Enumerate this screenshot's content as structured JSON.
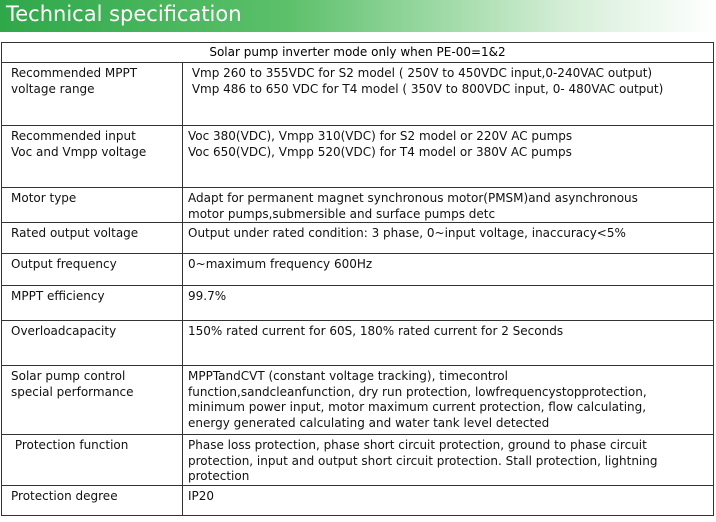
{
  "header": {
    "title": "Technical specification"
  },
  "table": {
    "title": "Solar pump inverter mode only when PE-00=1&2",
    "rows": [
      [
        [
          "Recommended MPPT",
          "voltage range"
        ],
        [
          " Vmp 260 to 355VDC for S2 model ( 250V to 450VDC input,0-240VAC output)",
          " Vmp 486 to 650 VDC for T4 model ( 350V to 800VDC input, 0- 480VAC output)"
        ]
      ],
      [
        [
          "Recommended input",
          "Voc and Vmpp voltage"
        ],
        [
          "Voc 380(VDC), Vmpp 310(VDC) for S2 model or 220V AC pumps",
          "Voc 650(VDC), Vmpp 520(VDC) for T4 model or 380V AC pumps"
        ]
      ],
      [
        [
          "Motor type"
        ],
        [
          "Adapt for permanent magnet synchronous motor(PMSM)and asynchronous",
          "motor pumps,submersible and surface pumps detc"
        ]
      ],
      [
        [
          "Rated output voltage"
        ],
        [
          "Output under rated condition: 3 phase, 0~input voltage, inaccuracy<5%"
        ]
      ],
      [
        [
          "Output frequency"
        ],
        [
          "0~maximum frequency 600Hz"
        ]
      ],
      [
        [
          "MPPT efficiency"
        ],
        [
          "99.7%"
        ]
      ],
      [
        [
          "Overloadcapacity"
        ],
        [
          "150% rated current for 60S, 180% rated current for 2 Seconds"
        ]
      ],
      [
        [
          "Solar pump control",
          "special performance"
        ],
        [
          "MPPTandCVT (constant voltage tracking), timecontrol",
          "function,sandcleanfunction, dry run protection, lowfrequencystopprotection,",
          "minimum power input, motor maximum current protection, flow calculating,",
          "energy generated calculating and water tank level detected"
        ]
      ],
      [
        [
          " Protection function"
        ],
        [
          "Phase loss protection, phase short circuit protection, ground to phase circuit",
          "protection, input and output short circuit protection. Stall protection, lightning",
          "protection"
        ]
      ],
      [
        [
          "Protection degree"
        ],
        [
          "IP20"
        ]
      ]
    ]
  }
}
